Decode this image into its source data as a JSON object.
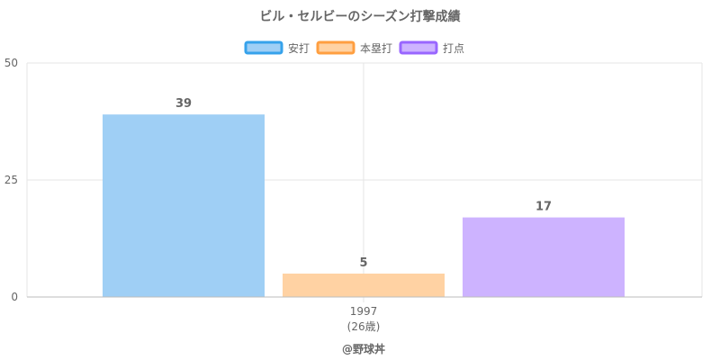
{
  "chart_data": {
    "type": "bar",
    "title": "ビル・セルビーのシーズン打撃成績",
    "categories": [
      "1997"
    ],
    "category_sublabels": [
      "(26歳)"
    ],
    "series": [
      {
        "name": "安打",
        "values": [
          39
        ],
        "color": "#9fcff5",
        "border_color": "#36a2eb",
        "label": "39"
      },
      {
        "name": "本塁打",
        "values": [
          5
        ],
        "color": "#ffd2a3",
        "border_color": "#ff9f40",
        "label": "5"
      },
      {
        "name": "打点",
        "values": [
          17
        ],
        "color": "#cdb3ff",
        "border_color": "#9966ff",
        "label": "17"
      }
    ],
    "y_ticks": [
      "0",
      "25",
      "50"
    ],
    "ylim": [
      0,
      50
    ],
    "grid": true,
    "legend_position": "top"
  },
  "footer": {
    "credit": "@野球丼"
  }
}
